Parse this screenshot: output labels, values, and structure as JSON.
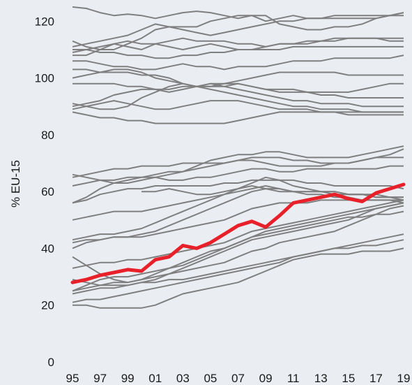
{
  "chart_data": {
    "type": "line",
    "title": "",
    "xlabel": "",
    "ylabel": "% EU-15",
    "ylim": [
      0,
      125
    ],
    "yticks": [
      0,
      20,
      40,
      60,
      80,
      100,
      120
    ],
    "xlim": [
      1995,
      2019
    ],
    "xticks": [
      {
        "year": 1995,
        "label": "95"
      },
      {
        "year": 1997,
        "label": "97"
      },
      {
        "year": 1999,
        "label": "99"
      },
      {
        "year": 2001,
        "label": "01"
      },
      {
        "year": 2003,
        "label": "03"
      },
      {
        "year": 2005,
        "label": "05"
      },
      {
        "year": 2007,
        "label": "07"
      },
      {
        "year": 2009,
        "label": "09"
      },
      {
        "year": 2011,
        "label": "11"
      },
      {
        "year": 2013,
        "label": "13"
      },
      {
        "year": 2015,
        "label": "15"
      },
      {
        "year": 2017,
        "label": "17"
      },
      {
        "year": 2019,
        "label": "19"
      }
    ],
    "grid": false,
    "legend": "none",
    "colors": {
      "background": "#eaeef3",
      "comparison": "#7f7f7f",
      "highlight": "#e8202a",
      "text": "#1a1a1a"
    },
    "highlight": {
      "x": [
        1995,
        1996,
        1997,
        1998,
        1999,
        2000,
        2001,
        2002,
        2003,
        2004,
        2005,
        2006,
        2007,
        2008,
        2009,
        2010,
        2011,
        2012,
        2013,
        2014,
        2015,
        2016,
        2017,
        2018,
        2019
      ],
      "values": [
        28,
        29,
        30.5,
        31.5,
        32.5,
        32,
        36,
        37,
        41,
        40,
        42,
        45,
        48,
        49.5,
        47.5,
        51.5,
        56,
        57,
        58,
        59,
        57.5,
        56.5,
        59.5,
        61,
        62.5
      ]
    },
    "series": [
      {
        "start": 1995,
        "values": [
          125,
          124.5,
          123,
          122,
          122.5,
          122,
          121,
          122,
          123,
          123.5,
          123,
          122,
          121,
          122,
          120,
          121,
          122,
          121,
          121,
          121,
          121,
          121,
          121,
          122,
          122
        ]
      },
      {
        "start": 1995,
        "values": [
          113,
          111,
          110,
          110,
          112,
          114,
          117,
          118,
          118,
          118,
          120,
          121,
          122,
          122,
          122,
          119,
          118,
          117,
          117,
          118,
          118,
          119,
          121,
          122,
          123
        ]
      },
      {
        "start": 1995,
        "values": [
          111,
          112,
          113,
          114,
          115,
          117,
          119,
          118,
          117,
          116,
          115,
          116,
          117,
          118,
          119,
          120,
          120,
          121,
          121,
          122,
          122,
          122,
          122,
          122,
          123
        ]
      },
      {
        "start": 1995,
        "values": [
          109,
          110,
          111,
          112,
          111,
          110,
          112,
          113,
          114,
          113,
          113,
          113,
          112,
          112,
          111,
          112,
          112,
          112,
          113,
          114,
          114,
          114,
          114,
          114,
          114
        ]
      },
      {
        "start": 1995,
        "values": [
          108,
          108,
          110,
          112,
          113,
          112,
          112,
          111,
          110,
          111,
          112,
          111,
          110,
          110,
          111,
          112,
          112,
          113,
          113,
          113,
          114,
          114,
          114,
          113,
          113
        ]
      },
      {
        "start": 1995,
        "values": [
          110,
          110,
          109,
          109,
          108,
          108,
          107,
          107,
          108,
          108,
          109,
          109,
          110,
          110,
          110,
          110,
          111,
          111,
          111,
          111,
          111,
          111,
          111,
          111,
          111
        ]
      },
      {
        "start": 1995,
        "values": [
          106,
          106,
          105,
          104,
          104,
          103,
          103,
          104,
          105,
          104,
          104,
          103,
          104,
          104,
          104,
          105,
          106,
          106,
          106,
          107,
          107,
          107,
          107,
          107,
          108
        ]
      },
      {
        "start": 1995,
        "values": [
          103,
          103,
          102,
          102,
          102,
          101,
          101,
          100,
          98,
          97,
          97,
          98,
          99,
          100,
          101,
          102,
          102,
          102,
          102,
          102,
          101,
          101,
          101,
          101,
          101
        ]
      },
      {
        "start": 1995,
        "values": [
          100,
          101,
          102,
          103,
          103,
          102,
          100,
          99,
          98,
          97,
          97,
          97,
          98,
          97,
          96,
          96,
          96,
          95,
          95,
          95,
          95,
          96,
          97,
          98,
          98
        ]
      },
      {
        "start": 1995,
        "values": [
          98,
          98,
          98,
          98,
          97,
          97,
          96,
          95,
          96,
          97,
          98,
          98,
          98,
          97,
          96,
          95,
          95,
          95,
          94,
          94,
          93,
          93,
          93,
          93,
          93
        ]
      },
      {
        "start": 1995,
        "values": [
          90,
          91,
          92,
          94,
          95,
          96,
          96,
          96,
          97,
          97,
          98,
          97,
          96,
          95,
          94,
          93,
          92,
          92,
          91,
          91,
          91,
          90,
          90,
          90,
          90
        ]
      },
      {
        "start": 1995,
        "values": [
          91,
          90,
          89,
          89,
          90,
          93,
          95,
          97,
          98,
          97,
          96,
          95,
          94,
          93,
          92,
          91,
          90,
          90,
          89,
          89,
          89,
          88,
          88,
          88,
          88
        ]
      },
      {
        "start": 1995,
        "values": [
          89,
          90,
          91,
          92,
          91,
          90,
          89,
          89,
          90,
          91,
          92,
          92,
          92,
          91,
          90,
          89,
          89,
          89,
          88,
          88,
          88,
          88,
          88,
          88,
          88
        ]
      },
      {
        "start": 1995,
        "values": [
          88,
          87,
          86,
          86,
          85,
          85,
          84,
          84,
          84,
          84,
          84,
          84,
          85,
          86,
          87,
          88,
          88,
          88,
          88,
          88,
          87,
          87,
          87,
          87,
          87
        ]
      },
      {
        "start": 1995,
        "values": [
          66,
          65,
          64,
          63,
          63,
          64,
          65,
          66,
          67,
          69,
          71,
          72,
          73,
          73,
          74,
          74,
          73,
          72,
          72,
          72,
          72,
          73,
          74,
          75,
          76
        ]
      },
      {
        "start": 1995,
        "values": [
          65,
          66,
          67,
          68,
          68,
          69,
          69,
          69,
          70,
          70,
          70,
          70,
          71,
          71,
          70,
          69,
          69,
          69,
          69,
          70,
          70,
          71,
          72,
          73,
          75
        ]
      },
      {
        "start": 1995,
        "values": [
          62,
          63,
          64,
          64,
          65,
          65,
          66,
          67,
          67,
          68,
          69,
          70,
          71,
          72,
          72,
          72,
          71,
          71,
          70,
          70,
          70,
          71,
          72,
          72,
          72
        ]
      },
      {
        "start": 1995,
        "values": [
          56,
          58,
          61,
          63,
          64,
          65,
          65,
          64,
          64,
          65,
          65,
          66,
          67,
          68,
          68,
          67,
          67,
          68,
          68,
          68,
          68,
          68,
          68,
          69,
          69
        ]
      },
      {
        "start": 1995,
        "values": [
          56,
          57,
          59,
          60,
          61,
          61,
          62,
          62,
          62,
          62,
          62,
          63,
          63,
          64,
          64,
          64,
          64,
          63,
          63,
          62,
          62,
          62,
          62,
          62,
          61
        ]
      },
      {
        "start": 2000,
        "values": [
          60,
          60,
          61,
          60,
          59,
          59,
          60,
          61,
          62,
          61,
          60,
          60,
          60,
          60,
          59,
          59,
          59,
          59,
          58,
          58
        ]
      },
      {
        "start": 1995,
        "values": [
          50,
          51,
          52,
          53,
          53,
          53,
          54,
          55,
          56,
          57,
          58,
          59,
          60,
          61,
          62,
          61,
          60,
          60,
          60,
          60,
          59,
          59,
          58,
          58,
          58
        ]
      },
      {
        "start": 1995,
        "values": [
          43,
          44,
          45,
          45,
          46,
          47,
          49,
          51,
          53,
          55,
          57,
          59,
          61,
          63,
          65,
          64,
          62,
          61,
          60,
          60,
          59,
          59,
          58,
          58,
          57
        ]
      },
      {
        "start": 1995,
        "values": [
          42,
          43,
          43,
          44,
          44,
          45,
          46,
          48,
          50,
          52,
          54,
          56,
          58,
          60,
          61,
          61,
          60,
          59,
          59,
          58,
          58,
          57,
          57,
          57,
          56
        ]
      },
      {
        "start": 1995,
        "values": [
          40,
          42,
          43,
          44,
          44,
          44,
          45,
          46,
          47,
          48,
          49,
          50,
          52,
          54,
          55,
          56,
          56,
          56,
          57,
          57,
          57,
          57,
          57,
          57,
          57
        ]
      },
      {
        "start": 1995,
        "values": [
          37,
          34,
          31,
          29,
          28,
          29,
          31,
          33,
          35,
          37,
          39,
          40,
          42,
          44,
          46,
          47,
          48,
          49,
          50,
          51,
          52,
          53,
          54,
          55,
          56
        ]
      },
      {
        "start": 1995,
        "values": [
          33,
          34,
          35,
          35,
          36,
          36,
          37,
          38,
          39,
          40,
          41,
          42,
          44,
          46,
          47,
          48,
          49,
          50,
          51,
          52,
          53,
          54,
          55,
          56,
          57
        ]
      },
      {
        "start": 1995,
        "values": [
          29,
          28,
          27,
          27,
          27,
          28,
          29,
          31,
          33,
          35,
          37,
          39,
          41,
          43,
          44,
          45,
          46,
          47,
          48,
          49,
          50,
          52,
          54,
          55,
          56
        ]
      },
      {
        "start": 1995,
        "values": [
          25,
          26,
          27,
          28,
          28,
          29,
          30,
          31,
          32,
          33,
          34,
          35,
          37,
          39,
          40,
          42,
          43,
          44,
          45,
          46,
          48,
          50,
          52,
          54,
          55
        ]
      },
      {
        "start": 1995,
        "values": [
          24,
          25,
          26,
          26,
          27,
          28,
          28,
          29,
          29,
          30,
          31,
          32,
          33,
          34,
          35,
          36,
          37,
          38,
          39,
          40,
          41,
          42,
          43,
          44,
          45
        ]
      },
      {
        "start": 1995,
        "values": [
          20,
          20,
          19,
          19,
          19,
          19,
          20,
          22,
          24,
          25,
          26,
          27,
          28,
          30,
          32,
          34,
          36,
          37,
          38,
          38,
          38,
          39,
          39,
          39,
          40
        ]
      },
      {
        "start": 1995,
        "values": [
          21,
          22,
          22,
          23,
          24,
          25,
          26,
          27,
          28,
          29,
          30,
          31,
          32,
          33,
          34,
          35,
          37,
          38,
          39,
          40,
          40,
          41,
          41,
          42,
          43
        ]
      },
      {
        "start": 1995,
        "values": [
          25,
          27,
          29,
          30,
          30,
          31,
          32,
          33,
          34,
          36,
          38,
          40,
          42,
          44,
          45,
          46,
          47,
          48,
          49,
          50,
          51,
          51,
          52,
          52,
          53
        ]
      }
    ]
  }
}
